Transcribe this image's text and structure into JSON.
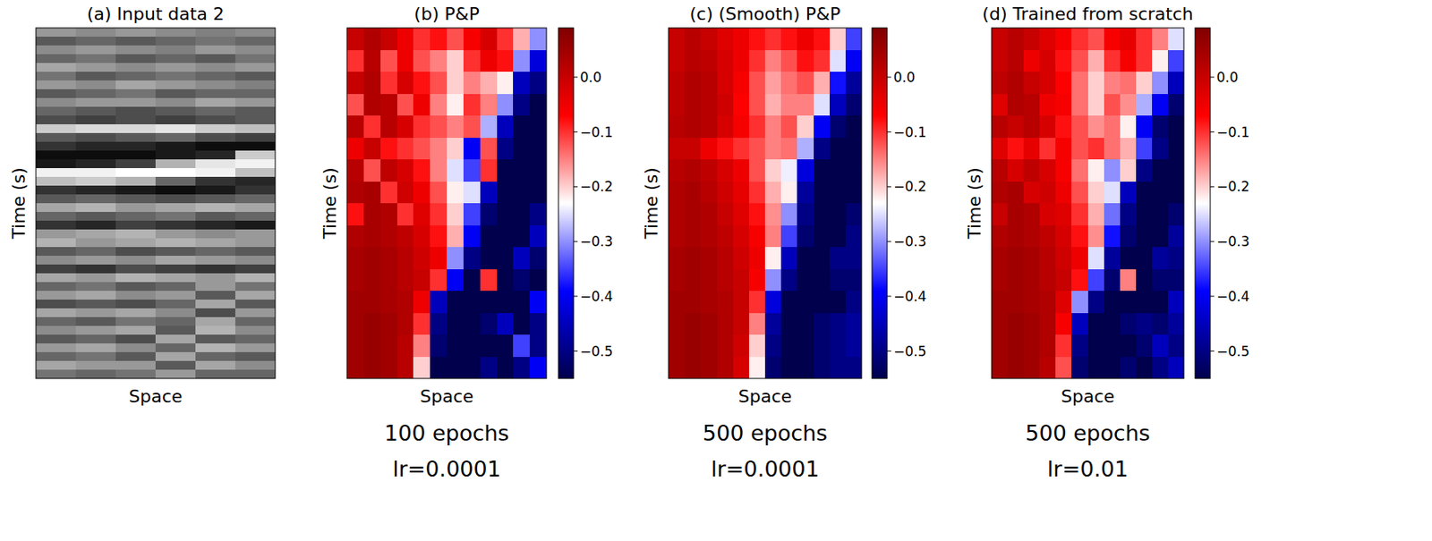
{
  "chart_data": [
    {
      "type": "heatmap",
      "title": "(a) Input data 2",
      "x_label": "Space",
      "y_label": "Time (s)",
      "tick_labels": false,
      "color": "gray",
      "value_range": [
        -1,
        1
      ],
      "cells": [
        [
          0.2,
          0.1,
          0.2,
          0.1,
          0.0,
          0.1
        ],
        [
          -0.3,
          -0.2,
          -0.3,
          -0.2,
          -0.1,
          -0.2
        ],
        [
          0.1,
          0.2,
          0.1,
          0.0,
          0.2,
          0.1
        ],
        [
          -0.2,
          -0.1,
          -0.3,
          -0.2,
          -0.3,
          -0.1
        ],
        [
          0.3,
          0.2,
          0.1,
          0.2,
          0.1,
          0.2
        ],
        [
          -0.1,
          -0.3,
          -0.2,
          -0.1,
          -0.2,
          -0.3
        ],
        [
          0.2,
          0.1,
          0.3,
          0.2,
          0.1,
          0.0
        ],
        [
          -0.3,
          -0.2,
          -0.1,
          -0.3,
          -0.2,
          -0.2
        ],
        [
          0.1,
          0.2,
          0.2,
          0.1,
          0.3,
          0.2
        ],
        [
          -0.2,
          -0.3,
          -0.4,
          -0.3,
          -0.2,
          -0.3
        ],
        [
          -0.4,
          -0.5,
          -0.4,
          -0.5,
          -0.4,
          -0.3
        ],
        [
          0.6,
          0.7,
          0.7,
          0.8,
          0.6,
          0.5
        ],
        [
          -0.3,
          -0.4,
          -0.3,
          -0.2,
          -0.4,
          -0.5
        ],
        [
          -0.6,
          -0.7,
          -0.7,
          -0.8,
          -0.9,
          -0.9
        ],
        [
          -0.9,
          -0.9,
          -0.9,
          -0.8,
          -0.7,
          0.6
        ],
        [
          -0.8,
          -0.7,
          -0.5,
          0.4,
          0.8,
          0.9
        ],
        [
          0.9,
          0.9,
          1.0,
          1.0,
          0.9,
          0.5
        ],
        [
          0.5,
          0.6,
          0.4,
          -0.2,
          -0.6,
          -0.7
        ],
        [
          -0.6,
          -0.7,
          -0.8,
          -0.9,
          -0.8,
          -0.6
        ],
        [
          -0.3,
          -0.2,
          -0.3,
          -0.4,
          -0.3,
          -0.2
        ],
        [
          0.3,
          0.4,
          0.2,
          0.3,
          0.4,
          0.3
        ],
        [
          -0.2,
          -0.3,
          -0.2,
          -0.1,
          -0.3,
          -0.2
        ],
        [
          -0.6,
          -0.7,
          -0.5,
          -0.6,
          -0.7,
          -0.8
        ],
        [
          0.2,
          0.3,
          0.4,
          0.2,
          0.1,
          0.2
        ],
        [
          0.4,
          0.2,
          0.3,
          0.4,
          0.3,
          0.2
        ],
        [
          -0.3,
          -0.2,
          -0.4,
          -0.3,
          -0.2,
          -0.3
        ],
        [
          0.1,
          0.2,
          0.1,
          0.3,
          0.2,
          0.1
        ],
        [
          -0.5,
          -0.6,
          -0.4,
          -0.5,
          -0.6,
          -0.5
        ],
        [
          0.3,
          0.2,
          0.4,
          0.3,
          0.2,
          0.4
        ],
        [
          -0.2,
          -0.1,
          -0.3,
          -0.2,
          0.2,
          -0.1
        ],
        [
          0.2,
          0.3,
          0.1,
          0.2,
          -0.3,
          0.3
        ],
        [
          -0.4,
          -0.3,
          -0.4,
          -0.2,
          0.3,
          -0.3
        ],
        [
          0.3,
          0.2,
          0.3,
          0.1,
          -0.4,
          0.2
        ],
        [
          -0.2,
          -0.3,
          -0.1,
          -0.2,
          0.3,
          -0.2
        ],
        [
          0.1,
          0.2,
          0.3,
          -0.3,
          0.4,
          0.1
        ],
        [
          -0.3,
          -0.2,
          -0.4,
          0.3,
          -0.3,
          -0.2
        ],
        [
          0.2,
          0.3,
          0.1,
          -0.2,
          0.4,
          0.2
        ],
        [
          -0.2,
          -0.1,
          -0.3,
          0.3,
          -0.2,
          -0.3
        ],
        [
          0.3,
          0.2,
          0.2,
          -0.3,
          0.3,
          0.1
        ],
        [
          -0.1,
          -0.2,
          -0.1,
          0.2,
          -0.2,
          -0.2
        ]
      ]
    },
    {
      "type": "heatmap",
      "title": "(b) P&P",
      "x_label": "Space",
      "y_label": "Time (s)",
      "tick_labels": false,
      "color": "seismic",
      "annotations": [
        "100 epochs",
        "lr=0.0001"
      ],
      "colorbar_range": [
        -0.55,
        0.09
      ],
      "colorbar_ticks": [
        {
          "value": 0,
          "label": "0.0"
        },
        {
          "value": -0.1,
          "label": "−0.1"
        },
        {
          "value": -0.2,
          "label": "−0.2"
        },
        {
          "value": -0.3,
          "label": "−0.3"
        },
        {
          "value": -0.4,
          "label": "−0.4"
        },
        {
          "value": -0.5,
          "label": "−0.5"
        }
      ],
      "cells": [
        [
          0.0,
          0.03,
          0.0,
          -0.05,
          -0.1,
          -0.08,
          -0.12,
          -0.06,
          -0.02,
          -0.1,
          -0.18,
          -0.3
        ],
        [
          -0.1,
          0.02,
          -0.12,
          -0.05,
          -0.12,
          -0.15,
          -0.2,
          -0.1,
          -0.05,
          -0.08,
          -0.3,
          -0.42
        ],
        [
          0.0,
          0.03,
          -0.1,
          -0.02,
          -0.08,
          -0.12,
          -0.2,
          -0.15,
          -0.18,
          -0.22,
          -0.45,
          -0.5
        ],
        [
          -0.12,
          0.03,
          0.02,
          -0.12,
          -0.05,
          -0.15,
          -0.22,
          -0.1,
          -0.15,
          -0.3,
          -0.5,
          -0.55
        ],
        [
          0.02,
          -0.1,
          0.02,
          -0.02,
          -0.1,
          -0.12,
          -0.15,
          -0.12,
          -0.28,
          -0.45,
          -0.55,
          -0.55
        ],
        [
          -0.05,
          0.0,
          -0.08,
          -0.1,
          -0.12,
          -0.15,
          -0.2,
          -0.4,
          -0.12,
          -0.5,
          -0.55,
          -0.55
        ],
        [
          0.02,
          -0.12,
          0.01,
          -0.02,
          -0.08,
          -0.15,
          -0.25,
          -0.35,
          -0.1,
          -0.55,
          -0.55,
          -0.55
        ],
        [
          0.03,
          0.04,
          -0.1,
          -0.01,
          -0.05,
          -0.12,
          -0.22,
          -0.25,
          -0.45,
          -0.55,
          -0.55,
          -0.55
        ],
        [
          -0.08,
          0.04,
          0.03,
          -0.1,
          -0.03,
          -0.1,
          -0.2,
          -0.35,
          -0.52,
          -0.55,
          -0.55,
          -0.5
        ],
        [
          0.03,
          0.04,
          0.03,
          0.01,
          -0.02,
          -0.08,
          -0.18,
          -0.4,
          -0.55,
          -0.55,
          -0.55,
          -0.45
        ],
        [
          0.04,
          0.05,
          0.04,
          0.02,
          -0.01,
          -0.05,
          -0.3,
          -0.5,
          -0.55,
          -0.55,
          -0.45,
          -0.52
        ],
        [
          0.04,
          0.05,
          0.04,
          0.02,
          0.0,
          -0.1,
          -0.4,
          -0.55,
          -0.1,
          -0.55,
          -0.52,
          -0.55
        ],
        [
          0.05,
          0.05,
          0.04,
          0.03,
          -0.05,
          -0.45,
          -0.55,
          -0.55,
          -0.55,
          -0.55,
          -0.55,
          -0.4
        ],
        [
          0.05,
          0.06,
          0.05,
          0.03,
          -0.1,
          -0.5,
          -0.55,
          -0.55,
          -0.52,
          -0.45,
          -0.55,
          -0.5
        ],
        [
          0.05,
          0.06,
          0.05,
          0.02,
          -0.15,
          -0.52,
          -0.55,
          -0.55,
          -0.55,
          -0.55,
          -0.35,
          -0.5
        ],
        [
          0.05,
          0.06,
          0.05,
          0.02,
          -0.2,
          -0.55,
          -0.55,
          -0.55,
          -0.5,
          -0.55,
          -0.5,
          -0.4
        ]
      ]
    },
    {
      "type": "heatmap",
      "title": "(c) (Smooth) P&P",
      "x_label": "Space",
      "y_label": "Time (s)",
      "tick_labels": false,
      "color": "seismic",
      "annotations": [
        "500 epochs",
        "lr=0.0001"
      ],
      "colorbar_range": [
        -0.55,
        0.09
      ],
      "colorbar_ticks": [
        {
          "value": 0,
          "label": "0.0"
        },
        {
          "value": -0.1,
          "label": "−0.1"
        },
        {
          "value": -0.2,
          "label": "−0.2"
        },
        {
          "value": -0.3,
          "label": "−0.3"
        },
        {
          "value": -0.4,
          "label": "−0.4"
        },
        {
          "value": -0.5,
          "label": "−0.5"
        }
      ],
      "cells": [
        [
          0.0,
          0.02,
          0.0,
          -0.03,
          -0.05,
          -0.08,
          -0.1,
          -0.08,
          -0.05,
          -0.08,
          -0.2,
          -0.35
        ],
        [
          0.0,
          0.02,
          0.01,
          -0.02,
          -0.05,
          -0.1,
          -0.15,
          -0.12,
          -0.08,
          -0.1,
          -0.25,
          -0.4
        ],
        [
          0.01,
          0.03,
          0.02,
          -0.02,
          -0.06,
          -0.12,
          -0.17,
          -0.14,
          -0.12,
          -0.18,
          -0.38,
          -0.48
        ],
        [
          0.01,
          0.03,
          0.02,
          -0.01,
          -0.07,
          -0.12,
          -0.18,
          -0.15,
          -0.15,
          -0.25,
          -0.45,
          -0.52
        ],
        [
          0.02,
          0.03,
          0.02,
          -0.02,
          -0.06,
          -0.1,
          -0.15,
          -0.12,
          -0.2,
          -0.4,
          -0.52,
          -0.55
        ],
        [
          0.0,
          0.0,
          -0.05,
          -0.08,
          -0.1,
          -0.12,
          -0.15,
          -0.14,
          -0.28,
          -0.5,
          -0.55,
          -0.55
        ],
        [
          0.02,
          0.03,
          0.01,
          -0.02,
          -0.05,
          -0.12,
          -0.2,
          -0.24,
          -0.42,
          -0.55,
          -0.55,
          -0.55
        ],
        [
          0.03,
          0.04,
          0.02,
          -0.01,
          -0.04,
          -0.1,
          -0.18,
          -0.22,
          -0.48,
          -0.55,
          -0.55,
          -0.55
        ],
        [
          0.03,
          0.04,
          0.03,
          0.0,
          -0.03,
          -0.08,
          -0.16,
          -0.3,
          -0.5,
          -0.55,
          -0.55,
          -0.52
        ],
        [
          0.03,
          0.04,
          0.03,
          0.01,
          -0.02,
          -0.06,
          -0.15,
          -0.35,
          -0.52,
          -0.55,
          -0.55,
          -0.5
        ],
        [
          0.04,
          0.05,
          0.04,
          0.02,
          -0.01,
          -0.05,
          -0.22,
          -0.45,
          -0.55,
          -0.55,
          -0.5,
          -0.5
        ],
        [
          0.04,
          0.05,
          0.04,
          0.02,
          0.0,
          -0.06,
          -0.3,
          -0.5,
          -0.55,
          -0.55,
          -0.52,
          -0.52
        ],
        [
          0.05,
          0.05,
          0.04,
          0.03,
          0.0,
          -0.1,
          -0.42,
          -0.55,
          -0.55,
          -0.55,
          -0.55,
          -0.5
        ],
        [
          0.05,
          0.06,
          0.05,
          0.03,
          0.0,
          -0.15,
          -0.48,
          -0.55,
          -0.55,
          -0.52,
          -0.5,
          -0.48
        ],
        [
          0.05,
          0.06,
          0.05,
          0.03,
          -0.01,
          -0.2,
          -0.5,
          -0.55,
          -0.55,
          -0.52,
          -0.5,
          -0.48
        ],
        [
          0.05,
          0.06,
          0.05,
          0.03,
          -0.02,
          -0.22,
          -0.52,
          -0.55,
          -0.55,
          -0.52,
          -0.5,
          -0.5
        ]
      ]
    },
    {
      "type": "heatmap",
      "title": "(d) Trained from scratch",
      "x_label": "Space",
      "y_label": "Time (s)",
      "tick_labels": false,
      "color": "seismic",
      "annotations": [
        "500 epochs",
        "lr=0.01"
      ],
      "colorbar_range": [
        -0.55,
        0.09
      ],
      "colorbar_ticks": [
        {
          "value": 0,
          "label": "0.0"
        },
        {
          "value": -0.1,
          "label": "−0.1"
        },
        {
          "value": -0.2,
          "label": "−0.2"
        },
        {
          "value": -0.3,
          "label": "−0.3"
        },
        {
          "value": -0.4,
          "label": "−0.4"
        },
        {
          "value": -0.5,
          "label": "−0.5"
        }
      ],
      "cells": [
        [
          0.0,
          0.02,
          0.0,
          -0.03,
          -0.06,
          -0.1,
          -0.12,
          -0.06,
          -0.04,
          -0.1,
          -0.15,
          -0.25
        ],
        [
          0.0,
          0.02,
          -0.05,
          -0.02,
          -0.08,
          -0.12,
          -0.18,
          -0.1,
          -0.06,
          -0.1,
          -0.22,
          -0.35
        ],
        [
          0.01,
          0.03,
          0.0,
          -0.02,
          -0.07,
          -0.14,
          -0.2,
          -0.15,
          -0.14,
          -0.2,
          -0.3,
          -0.45
        ],
        [
          -0.03,
          0.03,
          0.02,
          -0.05,
          -0.06,
          -0.14,
          -0.2,
          -0.12,
          -0.16,
          -0.28,
          -0.4,
          -0.52
        ],
        [
          0.02,
          0.0,
          0.02,
          -0.02,
          -0.08,
          -0.12,
          -0.16,
          -0.14,
          -0.22,
          -0.4,
          -0.52,
          -0.55
        ],
        [
          -0.03,
          -0.08,
          -0.04,
          -0.1,
          -0.06,
          -0.12,
          -0.1,
          -0.14,
          -0.18,
          -0.35,
          -0.5,
          -0.55
        ],
        [
          0.02,
          -0.02,
          0.01,
          -0.02,
          -0.06,
          -0.14,
          -0.22,
          -0.3,
          -0.2,
          -0.5,
          -0.55,
          -0.55
        ],
        [
          0.03,
          0.04,
          -0.02,
          -0.01,
          -0.05,
          -0.12,
          -0.2,
          -0.25,
          -0.45,
          -0.55,
          -0.55,
          -0.55
        ],
        [
          0.0,
          0.04,
          0.03,
          -0.02,
          -0.03,
          -0.1,
          -0.18,
          -0.32,
          -0.5,
          -0.55,
          -0.55,
          -0.52
        ],
        [
          0.03,
          0.04,
          0.03,
          0.01,
          -0.02,
          -0.08,
          -0.16,
          -0.38,
          -0.52,
          -0.55,
          -0.55,
          -0.48
        ],
        [
          0.04,
          0.05,
          0.04,
          0.02,
          -0.01,
          -0.05,
          -0.25,
          -0.48,
          -0.55,
          -0.55,
          -0.48,
          -0.5
        ],
        [
          0.04,
          0.05,
          0.04,
          0.02,
          0.0,
          -0.08,
          -0.35,
          -0.52,
          -0.15,
          -0.55,
          -0.52,
          -0.52
        ],
        [
          0.05,
          0.05,
          0.04,
          0.03,
          -0.03,
          -0.3,
          -0.5,
          -0.55,
          -0.55,
          -0.55,
          -0.55,
          -0.45
        ],
        [
          0.05,
          0.06,
          0.05,
          0.03,
          -0.06,
          -0.45,
          -0.55,
          -0.55,
          -0.52,
          -0.5,
          -0.52,
          -0.48
        ],
        [
          0.05,
          0.06,
          0.05,
          0.03,
          -0.1,
          -0.5,
          -0.55,
          -0.55,
          -0.55,
          -0.52,
          -0.45,
          -0.5
        ],
        [
          0.05,
          0.06,
          0.05,
          0.02,
          -0.12,
          -0.52,
          -0.55,
          -0.55,
          -0.52,
          -0.55,
          -0.5,
          -0.45
        ]
      ]
    }
  ]
}
